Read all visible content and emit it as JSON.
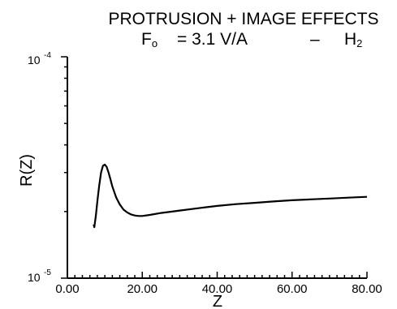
{
  "chart_data": {
    "type": "line",
    "title_line1": "PROTRUSION + IMAGE EFFECTS",
    "title_line2_prefix": "F",
    "title_line2_sub": "o",
    "title_line2_eq": "= 3.1 V/A",
    "title_line2_dash": "–",
    "title_line2_species": "H",
    "title_line2_species_sub": "2",
    "xlabel": "Z",
    "ylabel": "R(Z)",
    "y_scale": "log",
    "ylim": [
      1e-05,
      0.0001
    ],
    "xlim": [
      0,
      80
    ],
    "y_tick_base": "10",
    "y_tick_top_exp": "-4",
    "y_tick_bottom_exp": "-5",
    "x_ticks": [
      0,
      20,
      40,
      60,
      80
    ],
    "x_tick_labels": [
      "0.00",
      "20.00",
      "40.00",
      "60.00",
      "80.00"
    ],
    "grid": false,
    "series": [
      {
        "x": [
          7.0,
          7.2,
          7.6,
          8.0,
          8.5,
          9.0,
          9.5,
          10.0,
          10.5,
          11.0,
          11.5,
          12.0,
          13.0,
          14.0,
          15.0,
          16.0,
          17.0,
          18.0,
          19.0,
          20.0,
          22.0,
          25.0,
          30.0,
          35.0,
          40.0,
          45.0,
          50.0,
          55.0,
          60.0,
          65.0,
          70.0,
          75.0,
          80.0
        ],
        "y": [
          1.75e-05,
          1.7e-05,
          1.92e-05,
          2.22e-05,
          2.62e-05,
          3e-05,
          3.22e-05,
          3.26e-05,
          3.18e-05,
          3e-05,
          2.8e-05,
          2.6e-05,
          2.32e-05,
          2.15e-05,
          2.04e-05,
          1.98e-05,
          1.94e-05,
          1.92e-05,
          1.91e-05,
          1.91e-05,
          1.93e-05,
          1.97e-05,
          2.02e-05,
          2.07e-05,
          2.12e-05,
          2.16e-05,
          2.19e-05,
          2.22e-05,
          2.25e-05,
          2.27e-05,
          2.29e-05,
          2.31e-05,
          2.33e-05
        ]
      }
    ]
  }
}
